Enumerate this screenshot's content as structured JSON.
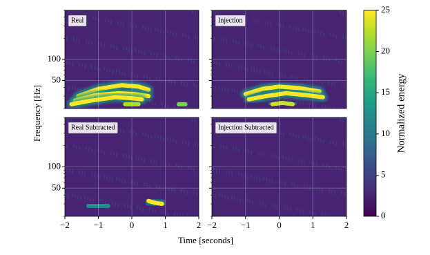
{
  "chart_data": [
    {
      "type": "spectrogram",
      "title": "Real",
      "yscale": "log",
      "grid": true,
      "xlim": [
        -2,
        2
      ],
      "ylim": [
        20,
        500
      ],
      "yticks": [
        50,
        100
      ],
      "yminorticks": [
        20,
        30,
        40,
        60,
        70,
        80,
        90,
        200,
        300,
        400,
        500
      ],
      "tracks": [
        {
          "x": [
            -1.6,
            -1.0,
            -0.3,
            0.2,
            0.5
          ],
          "y": [
            30,
            38,
            43,
            41,
            37
          ],
          "energy": 25
        },
        {
          "x": [
            -1.7,
            -1.1,
            -0.4,
            0.1,
            0.5
          ],
          "y": [
            26,
            31,
            33,
            32,
            30
          ],
          "energy": 25
        },
        {
          "x": [
            -1.8,
            -1.2,
            -0.5,
            0.0,
            0.3
          ],
          "y": [
            23,
            26,
            29,
            28,
            27
          ],
          "energy": 25
        },
        {
          "x": [
            -0.2,
            0.0,
            0.2
          ],
          "y": [
            23,
            23,
            23
          ],
          "energy": 22
        },
        {
          "x": [
            1.4,
            1.6
          ],
          "y": [
            23,
            23
          ],
          "energy": 20
        }
      ]
    },
    {
      "type": "spectrogram",
      "title": "Injection",
      "yscale": "log",
      "grid": true,
      "xlim": [
        -2,
        2
      ],
      "ylim": [
        20,
        500
      ],
      "yticks": [
        50,
        100
      ],
      "yminorticks": [
        20,
        30,
        40,
        60,
        70,
        80,
        90,
        200,
        300,
        400,
        500
      ],
      "tracks": [
        {
          "x": [
            -1.0,
            -0.5,
            0.0,
            0.6,
            1.2
          ],
          "y": [
            32,
            38,
            41,
            39,
            35
          ],
          "energy": 25
        },
        {
          "x": [
            -0.9,
            -0.4,
            0.2,
            0.8,
            1.3
          ],
          "y": [
            27,
            30,
            33,
            31,
            29
          ],
          "energy": 25
        },
        {
          "x": [
            -0.2,
            0.1,
            0.4
          ],
          "y": [
            23,
            24,
            23
          ],
          "energy": 23
        }
      ]
    },
    {
      "type": "spectrogram",
      "title": "Real Subtracted",
      "yscale": "log",
      "grid": true,
      "xlim": [
        -2,
        2
      ],
      "ylim": [
        20,
        500
      ],
      "yticks": [
        50,
        100
      ],
      "yminorticks": [
        20,
        30,
        40,
        60,
        70,
        80,
        90,
        200,
        300,
        400,
        500
      ],
      "xticks": [
        {
          "value": -2,
          "label": "−2"
        },
        {
          "value": -1,
          "label": "−1"
        },
        0,
        1,
        2
      ],
      "tracks": [
        {
          "x": [
            0.5,
            0.7,
            0.9
          ],
          "y": [
            33,
            31,
            30
          ],
          "energy": 25
        },
        {
          "x": [
            -1.3,
            -1.0,
            -0.7
          ],
          "y": [
            28,
            28,
            28
          ],
          "energy": 12
        }
      ]
    },
    {
      "type": "spectrogram",
      "title": "Injection Subtracted",
      "yscale": "log",
      "grid": true,
      "xlim": [
        -2,
        2
      ],
      "ylim": [
        20,
        500
      ],
      "yticks": [
        50,
        100
      ],
      "yminorticks": [
        20,
        30,
        40,
        60,
        70,
        80,
        90,
        200,
        300,
        400,
        500
      ],
      "xticks": [
        {
          "value": -2,
          "label": "−2"
        },
        {
          "value": -1,
          "label": "−1"
        },
        0,
        1,
        2
      ],
      "tracks": []
    },
    {
      "type": "colorbar",
      "label": "Normalized energy",
      "clim": [
        0,
        25
      ],
      "ticks": [
        0,
        5,
        10,
        15,
        20,
        25
      ],
      "colors": [
        "#440154",
        "#482878",
        "#3e4989",
        "#31688e",
        "#26828e",
        "#1f9e89",
        "#35b779",
        "#6ece58",
        "#b5de2b",
        "#fde725"
      ]
    },
    {
      "type": "labels",
      "xlabel": "Time [seconds]",
      "ylabel": "Frequency [Hz]"
    }
  ]
}
